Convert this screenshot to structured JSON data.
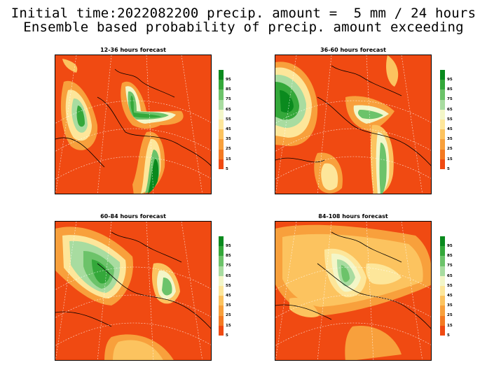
{
  "header": {
    "line1": "Initial time:2022082200 precip. amount =  5 mm / 24 hours",
    "line2": "Ensemble based probability of precip. amount exceeding"
  },
  "panels": [
    {
      "title": "12-36 hours forecast"
    },
    {
      "title": "36-60 hours forecast"
    },
    {
      "title": "60-84 hours forecast"
    },
    {
      "title": "84-108 hours forecast"
    }
  ],
  "colorbar": {
    "labels": [
      "95",
      "85",
      "75",
      "65",
      "55",
      "45",
      "35",
      "25",
      "15",
      "5"
    ],
    "colors": [
      "#0a8a1e",
      "#34a83a",
      "#6cc36a",
      "#a8dca0",
      "#f3f6c8",
      "#fde69a",
      "#fcc35f",
      "#f8a03c",
      "#f47a22",
      "#f04a12"
    ]
  }
}
